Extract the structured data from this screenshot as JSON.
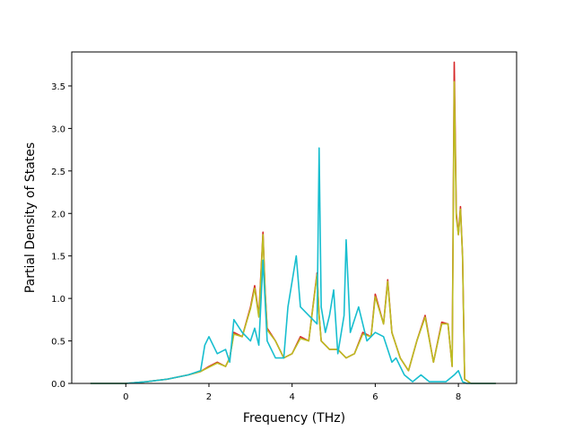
{
  "chart_data": {
    "type": "line",
    "title": "",
    "xlabel": "Frequency (THz)",
    "ylabel": "Partial Density of States",
    "xlim": [
      -1.3,
      9.4
    ],
    "ylim": [
      0.0,
      3.9
    ],
    "xticks": [
      0,
      2,
      4,
      6,
      8
    ],
    "yticks": [
      0.0,
      0.5,
      1.0,
      1.5,
      2.0,
      2.5,
      3.0,
      3.5
    ],
    "xtick_labels": [
      "0",
      "2",
      "4",
      "6",
      "8"
    ],
    "ytick_labels": [
      "0.0",
      "0.5",
      "1.0",
      "1.5",
      "2.0",
      "2.5",
      "3.0",
      "3.5"
    ],
    "grid": false,
    "legend": "none",
    "series": [
      {
        "color": "#d62728",
        "x": [
          -0.85,
          0.0,
          0.5,
          1.0,
          1.5,
          1.8,
          2.0,
          2.2,
          2.4,
          2.5,
          2.6,
          2.8,
          3.0,
          3.1,
          3.2,
          3.3,
          3.35,
          3.4,
          3.6,
          3.8,
          4.0,
          4.2,
          4.4,
          4.6,
          4.65,
          4.7,
          4.9,
          5.1,
          5.3,
          5.5,
          5.7,
          5.9,
          6.0,
          6.2,
          6.3,
          6.4,
          6.6,
          6.8,
          7.0,
          7.2,
          7.4,
          7.6,
          7.75,
          7.85,
          7.9,
          7.95,
          8.0,
          8.05,
          8.1,
          8.15,
          8.3,
          8.9
        ],
        "values": [
          0.0,
          0.0,
          0.02,
          0.05,
          0.1,
          0.14,
          0.2,
          0.25,
          0.2,
          0.3,
          0.6,
          0.55,
          0.9,
          1.15,
          0.8,
          1.78,
          1.1,
          0.65,
          0.5,
          0.3,
          0.35,
          0.55,
          0.5,
          1.3,
          0.8,
          0.5,
          0.4,
          0.4,
          0.3,
          0.35,
          0.6,
          0.55,
          1.05,
          0.7,
          1.22,
          0.6,
          0.3,
          0.15,
          0.5,
          0.8,
          0.25,
          0.72,
          0.7,
          0.2,
          3.78,
          2.0,
          1.75,
          2.08,
          1.5,
          0.05,
          0.0,
          0.0
        ]
      },
      {
        "color": "#bcbd22",
        "x": [
          -0.85,
          0.0,
          0.5,
          1.0,
          1.5,
          1.8,
          2.0,
          2.2,
          2.4,
          2.5,
          2.6,
          2.8,
          3.0,
          3.1,
          3.2,
          3.3,
          3.35,
          3.4,
          3.6,
          3.8,
          4.0,
          4.2,
          4.4,
          4.6,
          4.65,
          4.7,
          4.9,
          5.1,
          5.3,
          5.5,
          5.7,
          5.9,
          6.0,
          6.2,
          6.3,
          6.4,
          6.6,
          6.8,
          7.0,
          7.2,
          7.4,
          7.6,
          7.75,
          7.85,
          7.9,
          7.95,
          8.0,
          8.05,
          8.1,
          8.15,
          8.3,
          8.9
        ],
        "values": [
          0.0,
          0.0,
          0.02,
          0.05,
          0.1,
          0.14,
          0.19,
          0.24,
          0.2,
          0.3,
          0.58,
          0.55,
          0.88,
          1.12,
          0.78,
          1.75,
          1.08,
          0.63,
          0.5,
          0.3,
          0.35,
          0.53,
          0.5,
          1.28,
          0.8,
          0.5,
          0.4,
          0.4,
          0.3,
          0.35,
          0.58,
          0.55,
          1.02,
          0.7,
          1.2,
          0.6,
          0.3,
          0.15,
          0.5,
          0.78,
          0.25,
          0.7,
          0.7,
          0.2,
          3.55,
          1.95,
          1.75,
          2.05,
          1.5,
          0.05,
          0.0,
          0.0
        ]
      },
      {
        "color": "#17becf",
        "x": [
          -0.85,
          0.0,
          0.5,
          1.0,
          1.5,
          1.8,
          1.9,
          2.0,
          2.2,
          2.4,
          2.5,
          2.6,
          2.8,
          3.0,
          3.1,
          3.2,
          3.3,
          3.4,
          3.6,
          3.8,
          3.9,
          4.1,
          4.2,
          4.4,
          4.6,
          4.65,
          4.7,
          4.8,
          4.9,
          5.0,
          5.1,
          5.25,
          5.3,
          5.4,
          5.6,
          5.8,
          6.0,
          6.2,
          6.4,
          6.5,
          6.7,
          6.9,
          7.1,
          7.3,
          7.5,
          7.7,
          7.9,
          8.0,
          8.1,
          8.2,
          8.9
        ],
        "values": [
          0.0,
          0.0,
          0.02,
          0.05,
          0.1,
          0.15,
          0.45,
          0.55,
          0.35,
          0.4,
          0.25,
          0.75,
          0.6,
          0.5,
          0.65,
          0.45,
          1.45,
          0.5,
          0.3,
          0.3,
          0.9,
          1.5,
          0.9,
          0.8,
          0.7,
          2.77,
          0.9,
          0.6,
          0.8,
          1.1,
          0.35,
          0.8,
          1.69,
          0.6,
          0.9,
          0.5,
          0.6,
          0.55,
          0.25,
          0.3,
          0.1,
          0.02,
          0.1,
          0.02,
          0.02,
          0.02,
          0.1,
          0.15,
          0.02,
          0.0,
          0.0
        ]
      }
    ]
  }
}
